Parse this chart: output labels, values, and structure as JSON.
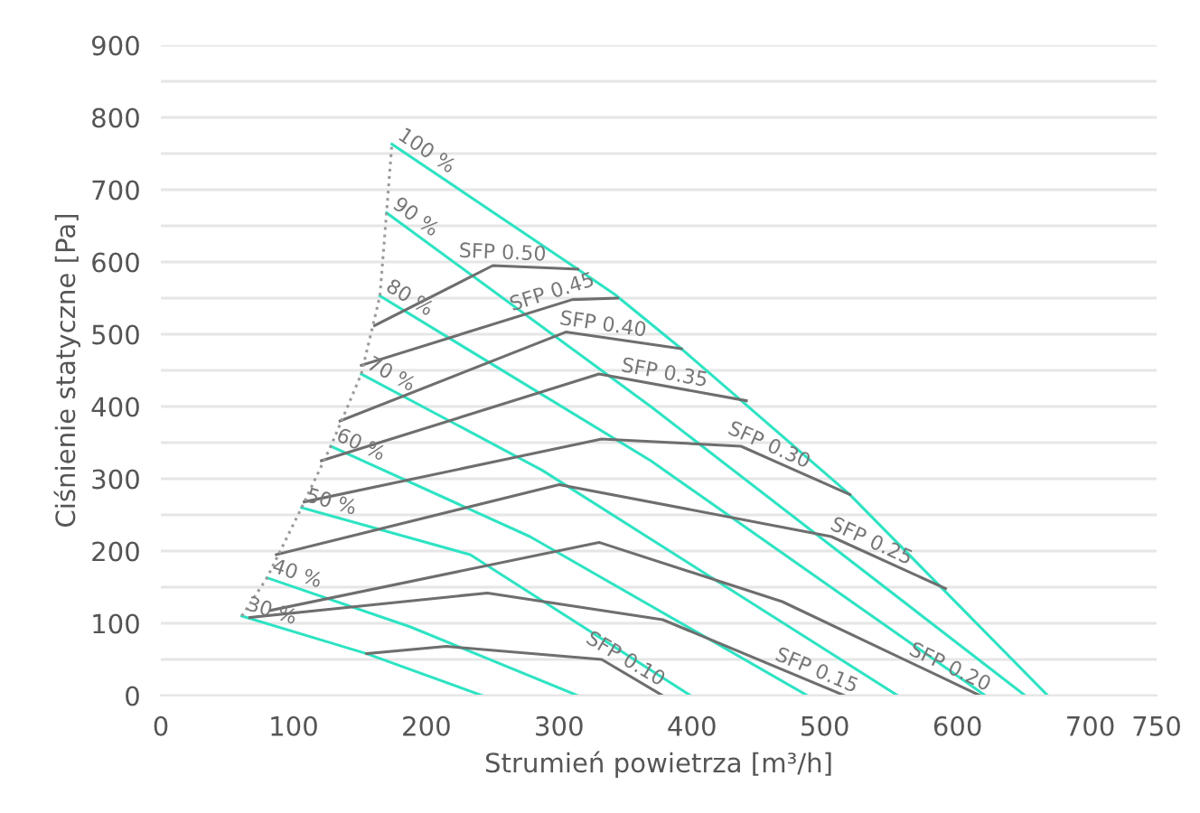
{
  "chart_data": {
    "type": "line",
    "xlabel": "Strumień powietrza [m³/h]",
    "ylabel": "Ciśnienie statyczne [Pa]",
    "xlim": [
      0,
      750
    ],
    "xticks": [
      0,
      100,
      200,
      300,
      400,
      500,
      600,
      700,
      750
    ],
    "ylim": [
      0,
      900
    ],
    "yticks": [
      0,
      {
        "value": 50,
        "label": null
      },
      100,
      {
        "value": 150,
        "label": null
      },
      200,
      {
        "value": 250,
        "label": null
      },
      300,
      {
        "value": 350,
        "label": null
      },
      400,
      {
        "value": 450,
        "label": null
      },
      500,
      {
        "value": 550,
        "label": null
      },
      600,
      {
        "value": 650,
        "label": null
      },
      700,
      {
        "value": 750,
        "label": null
      },
      800,
      {
        "value": 850,
        "label": null
      },
      900
    ],
    "grid": "y",
    "marker": "none",
    "series": [
      {
        "name": "100 %",
        "color": "#2ee3c3",
        "line_style": "solid",
        "x": [
          174,
          314,
          342,
          392,
          519,
          668
        ],
        "values": [
          763,
          590,
          555,
          480,
          278,
          0
        ]
      },
      {
        "name": "90 %",
        "color": "#2ee3c3",
        "line_style": "solid",
        "x": [
          170,
          369,
          651
        ],
        "values": [
          668,
          400,
          0
        ]
      },
      {
        "name": "80 %",
        "color": "#2ee3c3",
        "line_style": "solid",
        "x": [
          165,
          369,
          621
        ],
        "values": [
          553,
          325,
          0
        ]
      },
      {
        "name": "70 %",
        "color": "#2ee3c3",
        "line_style": "solid",
        "x": [
          151,
          287,
          555
        ],
        "values": [
          445,
          312,
          0
        ]
      },
      {
        "name": "60 %",
        "color": "#2ee3c3",
        "line_style": "solid",
        "x": [
          128,
          278,
          487
        ],
        "values": [
          345,
          220,
          0
        ]
      },
      {
        "name": "50 %",
        "color": "#2ee3c3",
        "line_style": "solid",
        "x": [
          106,
          233,
          399
        ],
        "values": [
          260,
          195,
          0
        ]
      },
      {
        "name": "40 %",
        "color": "#2ee3c3",
        "line_style": "solid",
        "x": [
          80,
          188,
          314
        ],
        "values": [
          163,
          95,
          0
        ]
      },
      {
        "name": "30 %",
        "color": "#2ee3c3",
        "line_style": "solid",
        "x": [
          61,
          155,
          242
        ],
        "values": [
          110,
          58,
          0
        ]
      },
      {
        "color": "#6e6e6e",
        "line_style": "solid",
        "x": [
          161,
          250,
          314
        ],
        "values": [
          512,
          595,
          590
        ]
      },
      {
        "color": "#6e6e6e",
        "line_style": "solid",
        "x": [
          151,
          310,
          344
        ],
        "values": [
          457,
          548,
          550
        ]
      },
      {
        "color": "#6e6e6e",
        "line_style": "solid",
        "x": [
          135,
          305,
          392
        ],
        "values": [
          380,
          503,
          480
        ]
      },
      {
        "color": "#6e6e6e",
        "line_style": "solid",
        "x": [
          121,
          330,
          441
        ],
        "values": [
          325,
          445,
          408
        ]
      },
      {
        "color": "#6e6e6e",
        "line_style": "solid",
        "x": [
          108,
          332,
          437,
          519
        ],
        "values": [
          268,
          355,
          345,
          278
        ]
      },
      {
        "color": "#6e6e6e",
        "line_style": "solid",
        "x": [
          87,
          300,
          505,
          591
        ],
        "values": [
          195,
          292,
          220,
          148
        ]
      },
      {
        "color": "#6e6e6e",
        "line_style": "solid",
        "x": [
          83,
          330,
          468,
          617
        ],
        "values": [
          118,
          212,
          130,
          0
        ]
      },
      {
        "color": "#6e6e6e",
        "line_style": "solid",
        "x": [
          67,
          246,
          378,
          515
        ],
        "values": [
          108,
          142,
          105,
          0
        ]
      },
      {
        "color": "#6e6e6e",
        "line_style": "solid",
        "x": [
          155,
          215,
          332,
          378
        ],
        "values": [
          58,
          68,
          50,
          0
        ]
      },
      {
        "color": "#9a9a9a",
        "line_style": "dotted",
        "x": [
          61,
          80,
          106,
          128,
          151,
          165,
          170,
          174
        ],
        "values": [
          110,
          163,
          260,
          345,
          445,
          553,
          668,
          763
        ]
      }
    ],
    "annotations": [
      {
        "text": "SFP 0.50",
        "x": 257,
        "y": 595
      },
      {
        "text": "SFP 0.45",
        "x": 297,
        "y": 541
      },
      {
        "text": "SFP 0.40",
        "x": 332,
        "y": 496
      },
      {
        "text": "SFP 0.35",
        "x": 378,
        "y": 429
      },
      {
        "text": "SFP 0.30",
        "x": 455,
        "y": 330
      },
      {
        "text": "SFP 0.25",
        "x": 532,
        "y": 197
      },
      {
        "text": "SFP 0.20",
        "x": 591,
        "y": 23
      },
      {
        "text": "SFP 0.15",
        "x": 491,
        "y": 18
      },
      {
        "text": "SFP 0.10",
        "x": 346,
        "y": 35
      }
    ]
  }
}
